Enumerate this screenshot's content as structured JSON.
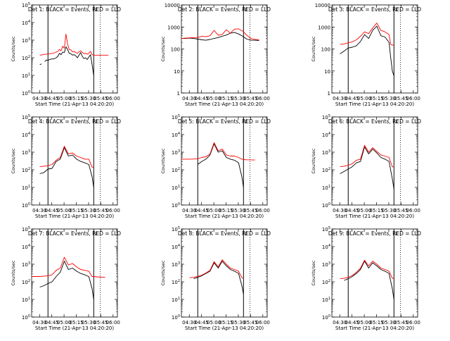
{
  "figure": {
    "xlabel": "Start Time (21-Apr-13 04:20:20)",
    "ylabel": "Counts/sec",
    "x_tick_labels": [
      "04:30",
      "04:45",
      "05:00",
      "05:15",
      "05:30",
      "05:45",
      "06:00"
    ],
    "colors": {
      "events": "#000000",
      "lld": "#ff0000",
      "axis": "#000000"
    },
    "marker_label": "L"
  },
  "chart_data": [
    {
      "type": "line",
      "title": "Det 1: BLACK = Events, RED = LLD",
      "xlabel": "Start Time (21-Apr-13 04:20:20)",
      "ylabel": "Counts/sec",
      "yscale": "log",
      "ylim": [
        1,
        100000
      ],
      "y_tick_labels": [
        "10^0",
        "10^1",
        "10^2",
        "10^3",
        "10^4",
        "10^5"
      ],
      "xlim_minutes_after_0420": [
        0,
        105
      ],
      "marker_lines_minutes": [
        20,
        76
      ],
      "dotted_line_minutes": 84,
      "x": [
        10,
        12,
        14,
        16,
        18,
        20,
        22,
        24,
        26,
        28,
        30,
        32,
        34,
        36,
        38,
        40,
        42,
        44,
        46,
        48,
        50,
        52,
        54,
        56,
        58,
        60,
        62,
        64,
        66,
        68,
        70,
        72,
        74,
        76,
        78,
        80,
        82,
        84,
        86,
        88,
        90,
        92,
        94
      ],
      "series": [
        {
          "name": "BLACK = Events",
          "values": [
            40,
            45,
            null,
            60,
            75,
            70,
            80,
            85,
            85,
            90,
            100,
            120,
            180,
            150,
            210,
            200,
            420,
            300,
            180,
            170,
            140,
            150,
            130,
            100,
            140,
            200,
            120,
            90,
            100,
            80,
            110,
            150,
            40,
            10,
            null,
            null,
            null,
            null,
            null,
            null,
            null,
            null,
            null
          ]
        },
        {
          "name": "RED = LLD",
          "values": [
            null,
            null,
            null,
            null,
            null,
            null,
            null,
            null,
            null,
            null,
            null,
            null,
            null,
            null,
            null,
            null,
            null,
            null,
            null,
            null,
            null,
            null,
            null,
            null,
            null,
            null,
            null,
            null,
            null,
            null,
            null,
            null,
            null,
            null,
            null,
            null,
            null,
            null,
            null,
            null,
            null,
            null,
            null
          ]
        },
        {
          "name": "RED = LLD",
          "values": [
            140,
            145,
            150,
            155,
            160,
            165,
            170,
            175,
            180,
            190,
            210,
            230,
            300,
            250,
            450,
            350,
            2200,
            600,
            300,
            280,
            220,
            230,
            200,
            180,
            220,
            250,
            200,
            170,
            180,
            160,
            180,
            230,
            150,
            140,
            140,
            140,
            140,
            140,
            140,
            140,
            140,
            140,
            140
          ]
        }
      ]
    },
    {
      "type": "line",
      "title": "Det 2: BLACK = Events, RED = LLD",
      "xlabel": "Start Time (21-Apr-13 04:20:20)",
      "ylabel": "Counts/sec",
      "yscale": "log",
      "ylim": [
        1,
        10000
      ],
      "y_tick_labels": [
        "1",
        "10",
        "100",
        "1000",
        "10000"
      ],
      "xlim_minutes_after_0420": [
        0,
        105
      ],
      "marker_lines_minutes": [
        20,
        76
      ],
      "dotted_line_minutes": 84,
      "x": [
        0,
        5,
        10,
        15,
        20,
        25,
        30,
        35,
        40,
        45,
        50,
        55,
        60,
        65,
        70,
        75,
        80,
        85,
        90,
        95,
        100
      ],
      "series": [
        {
          "name": "BLACK = Events",
          "values": [
            300,
            300,
            310,
            300,
            280,
            260,
            250,
            270,
            300,
            330,
            380,
            430,
            520,
            560,
            480,
            380,
            280,
            250,
            250,
            240,
            null
          ]
        },
        {
          "name": "RED = LLD",
          "values": [
            300,
            310,
            320,
            330,
            330,
            380,
            360,
            400,
            700,
            420,
            460,
            750,
            520,
            800,
            820,
            650,
            420,
            300,
            270,
            260,
            null
          ]
        }
      ]
    },
    {
      "type": "line",
      "title": "Det 3: BLACK = Events, RED = LLD",
      "xlabel": "Start Time (21-Apr-13 04:20:20)",
      "ylabel": "Counts/sec",
      "yscale": "log",
      "ylim": [
        1,
        10000
      ],
      "y_tick_labels": [
        "1",
        "10",
        "100",
        "1000",
        "10000"
      ],
      "xlim_minutes_after_0420": [
        0,
        105
      ],
      "marker_lines_minutes": [
        20,
        76
      ],
      "dotted_line_minutes": 84,
      "x": [
        10,
        15,
        20,
        25,
        30,
        35,
        40,
        45,
        50,
        55,
        60,
        65,
        70,
        72,
        74,
        76
      ],
      "series": [
        {
          "name": "BLACK = Events",
          "values": [
            60,
            80,
            110,
            120,
            140,
            220,
            450,
            300,
            700,
            1100,
            400,
            350,
            200,
            40,
            10,
            6
          ]
        },
        {
          "name": "RED = LLD",
          "values": [
            160,
            170,
            190,
            210,
            260,
            380,
            600,
            500,
            900,
            1500,
            700,
            600,
            450,
            160,
            150,
            150
          ]
        }
      ]
    },
    {
      "type": "line",
      "title": "Det 4: BLACK = Events, RED = LLD",
      "xlabel": "Start Time (21-Apr-13 04:20:20)",
      "ylabel": "Counts/sec",
      "yscale": "log",
      "ylim": [
        1,
        100000
      ],
      "y_tick_labels": [
        "10^0",
        "10^1",
        "10^2",
        "10^3",
        "10^4",
        "10^5"
      ],
      "xlim_minutes_after_0420": [
        0,
        105
      ],
      "marker_lines_minutes": [
        20,
        76
      ],
      "dotted_line_minutes": 84,
      "x": [
        10,
        15,
        20,
        25,
        30,
        35,
        40,
        45,
        50,
        55,
        60,
        65,
        70,
        74,
        76
      ],
      "series": [
        {
          "name": "BLACK = Events",
          "values": [
            60,
            70,
            110,
            120,
            300,
            400,
            1800,
            600,
            700,
            400,
            300,
            250,
            200,
            40,
            10
          ]
        },
        {
          "name": "RED = LLD",
          "values": [
            150,
            160,
            170,
            200,
            350,
            500,
            2200,
            800,
            900,
            600,
            500,
            400,
            400,
            140,
            140
          ]
        }
      ]
    },
    {
      "type": "line",
      "title": "Det 5: BLACK = Events, RED = LLD",
      "xlabel": "Start Time (21-Apr-13 04:20:20)",
      "ylabel": "Counts/sec",
      "yscale": "log",
      "ylim": [
        1,
        100000
      ],
      "y_tick_labels": [
        "10^0",
        "10^1",
        "10^2",
        "10^3",
        "10^4",
        "10^5"
      ],
      "xlim_minutes_after_0420": [
        0,
        105
      ],
      "marker_lines_minutes": [
        20,
        76
      ],
      "dotted_line_minutes": 84,
      "x": [
        0,
        10,
        20,
        25,
        30,
        35,
        40,
        45,
        50,
        55,
        60,
        65,
        70,
        74,
        76,
        80,
        90,
        100
      ],
      "series": [
        {
          "name": "BLACK = Events",
          "values": [
            null,
            null,
            200,
            300,
            400,
            700,
            3000,
            1000,
            1200,
            500,
            400,
            350,
            250,
            40,
            10,
            null,
            null,
            null
          ]
        },
        {
          "name": "RED = LLD",
          "values": [
            400,
            400,
            420,
            500,
            550,
            800,
            3500,
            1200,
            1500,
            700,
            600,
            600,
            500,
            400,
            380,
            370,
            360,
            null
          ]
        }
      ]
    },
    {
      "type": "line",
      "title": "Det 6: BLACK = Events, RED = LLD",
      "xlabel": "Start Time (21-Apr-13 04:20:20)",
      "ylabel": "Counts/sec",
      "yscale": "log",
      "ylim": [
        1,
        100000
      ],
      "y_tick_labels": [
        "10^0",
        "10^1",
        "10^2",
        "10^3",
        "10^4",
        "10^5"
      ],
      "xlim_minutes_after_0420": [
        0,
        105
      ],
      "marker_lines_minutes": [
        20,
        76
      ],
      "dotted_line_minutes": 84,
      "x": [
        10,
        15,
        20,
        25,
        30,
        35,
        40,
        45,
        50,
        55,
        60,
        65,
        70,
        74,
        76
      ],
      "series": [
        {
          "name": "BLACK = Events",
          "values": [
            60,
            80,
            110,
            150,
            250,
            300,
            2000,
            800,
            1500,
            900,
            500,
            400,
            300,
            30,
            8
          ]
        },
        {
          "name": "RED = LLD",
          "values": [
            150,
            160,
            180,
            220,
            350,
            400,
            2500,
            1000,
            1800,
            1100,
            700,
            600,
            500,
            150,
            140
          ]
        }
      ]
    },
    {
      "type": "line",
      "title": "Det 7: BLACK = Events, RED = LLD",
      "xlabel": "Start Time (21-Apr-13 04:20:20)",
      "ylabel": "Counts/sec",
      "yscale": "log",
      "ylim": [
        1,
        100000
      ],
      "y_tick_labels": [
        "10^0",
        "10^1",
        "10^2",
        "10^3",
        "10^4",
        "10^5"
      ],
      "xlim_minutes_after_0420": [
        0,
        105
      ],
      "marker_lines_minutes": [
        20,
        76
      ],
      "dotted_line_minutes": 84,
      "x": [
        0,
        10,
        15,
        20,
        25,
        30,
        35,
        40,
        45,
        50,
        55,
        60,
        65,
        70,
        74,
        76,
        80,
        90,
        100
      ],
      "series": [
        {
          "name": "BLACK = Events",
          "values": [
            null,
            50,
            60,
            80,
            100,
            200,
            350,
            1500,
            500,
            600,
            400,
            300,
            250,
            200,
            40,
            10,
            null,
            null,
            null
          ]
        },
        {
          "name": "RED = LLD",
          "values": [
            200,
            200,
            210,
            220,
            250,
            450,
            600,
            2500,
            900,
            1100,
            700,
            500,
            450,
            400,
            200,
            200,
            190,
            180,
            null
          ]
        }
      ]
    },
    {
      "type": "line",
      "title": "Det 8: BLACK = Events, RED = LLD",
      "xlabel": "Start Time (21-Apr-13 04:20:20)",
      "ylabel": "Counts/sec",
      "yscale": "log",
      "ylim": [
        1,
        100000
      ],
      "y_tick_labels": [
        "10^0",
        "10^1",
        "10^2",
        "10^3",
        "10^4",
        "10^5"
      ],
      "xlim_minutes_after_0420": [
        0,
        105
      ],
      "marker_lines_minutes": [
        20,
        76
      ],
      "dotted_line_minutes": 84,
      "x": [
        10,
        15,
        20,
        25,
        30,
        35,
        40,
        45,
        50,
        55,
        60,
        65,
        70,
        74,
        76
      ],
      "series": [
        {
          "name": "BLACK = Events",
          "values": [
            null,
            150,
            180,
            220,
            300,
            400,
            1200,
            600,
            1500,
            800,
            500,
            400,
            300,
            60,
            20
          ]
        },
        {
          "name": "RED = LLD",
          "values": [
            170,
            180,
            200,
            240,
            320,
            450,
            1400,
            700,
            1800,
            1000,
            600,
            500,
            400,
            170,
            160
          ]
        }
      ]
    },
    {
      "type": "line",
      "title": "Det 9: BLACK = Events, RED = LLD",
      "xlabel": "Start Time (21-Apr-13 04:20:20)",
      "ylabel": "Counts/sec",
      "yscale": "log",
      "ylim": [
        1,
        100000
      ],
      "y_tick_labels": [
        "10^0",
        "10^1",
        "10^2",
        "10^3",
        "10^4",
        "10^5"
      ],
      "xlim_minutes_after_0420": [
        0,
        105
      ],
      "marker_lines_minutes": [
        20,
        76
      ],
      "dotted_line_minutes": 84,
      "x": [
        10,
        15,
        20,
        25,
        30,
        35,
        40,
        45,
        50,
        55,
        60,
        65,
        70,
        74,
        76
      ],
      "series": [
        {
          "name": "BLACK = Events",
          "values": [
            null,
            120,
            150,
            200,
            300,
            500,
            1500,
            600,
            1200,
            800,
            500,
            400,
            300,
            40,
            10
          ]
        },
        {
          "name": "RED = LLD",
          "values": [
            150,
            160,
            180,
            230,
            350,
            600,
            1700,
            800,
            1500,
            1000,
            600,
            500,
            400,
            160,
            150
          ]
        }
      ]
    }
  ]
}
